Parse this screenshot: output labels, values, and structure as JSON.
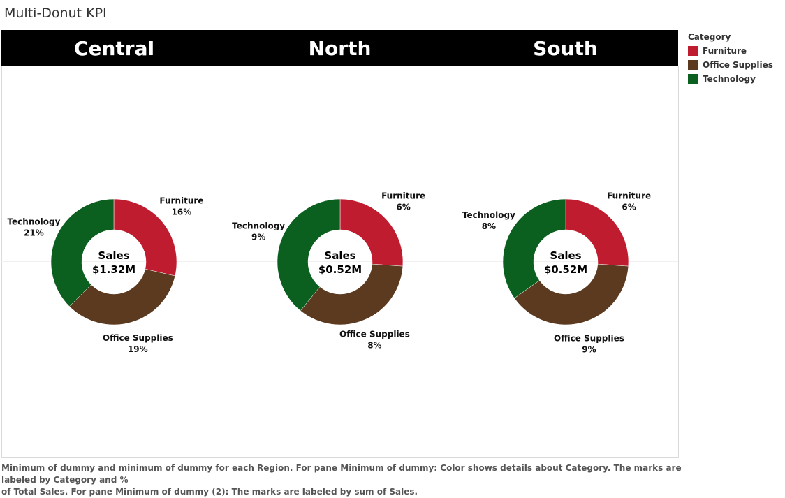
{
  "title": "Multi-Donut KPI",
  "legend": {
    "title": "Category",
    "items": [
      {
        "label": "Furniture",
        "color": "#C01C30"
      },
      {
        "label": "Office Supplies",
        "color": "#5B3A1F"
      },
      {
        "label": "Technology",
        "color": "#0B6020"
      }
    ]
  },
  "chart_data": {
    "type": "pie",
    "subtype": "donut",
    "center_label": "Sales",
    "panels": [
      {
        "region": "Central",
        "total_label": "$1.32M",
        "slices": [
          {
            "category": "Furniture",
            "pct_label": "16%",
            "value": 16
          },
          {
            "category": "Office Supplies",
            "pct_label": "19%",
            "value": 19
          },
          {
            "category": "Technology",
            "pct_label": "21%",
            "value": 21
          }
        ]
      },
      {
        "region": "North",
        "total_label": "$0.52M",
        "slices": [
          {
            "category": "Furniture",
            "pct_label": "6%",
            "value": 6
          },
          {
            "category": "Office Supplies",
            "pct_label": "8%",
            "value": 8
          },
          {
            "category": "Technology",
            "pct_label": "9%",
            "value": 9
          }
        ]
      },
      {
        "region": "South",
        "total_label": "$0.52M",
        "slices": [
          {
            "category": "Furniture",
            "pct_label": "6%",
            "value": 6
          },
          {
            "category": "Office Supplies",
            "pct_label": "9%",
            "value": 9
          },
          {
            "category": "Technology",
            "pct_label": "8%",
            "value": 8
          }
        ]
      }
    ]
  },
  "footer": {
    "line1": "Minimum of dummy and minimum of dummy for each Region.  For pane Minimum of dummy:  Color shows details about Category.  The marks are labeled by Category and %",
    "line2": "of Total Sales.  For pane Minimum of dummy (2):  The marks are labeled by sum of Sales."
  }
}
